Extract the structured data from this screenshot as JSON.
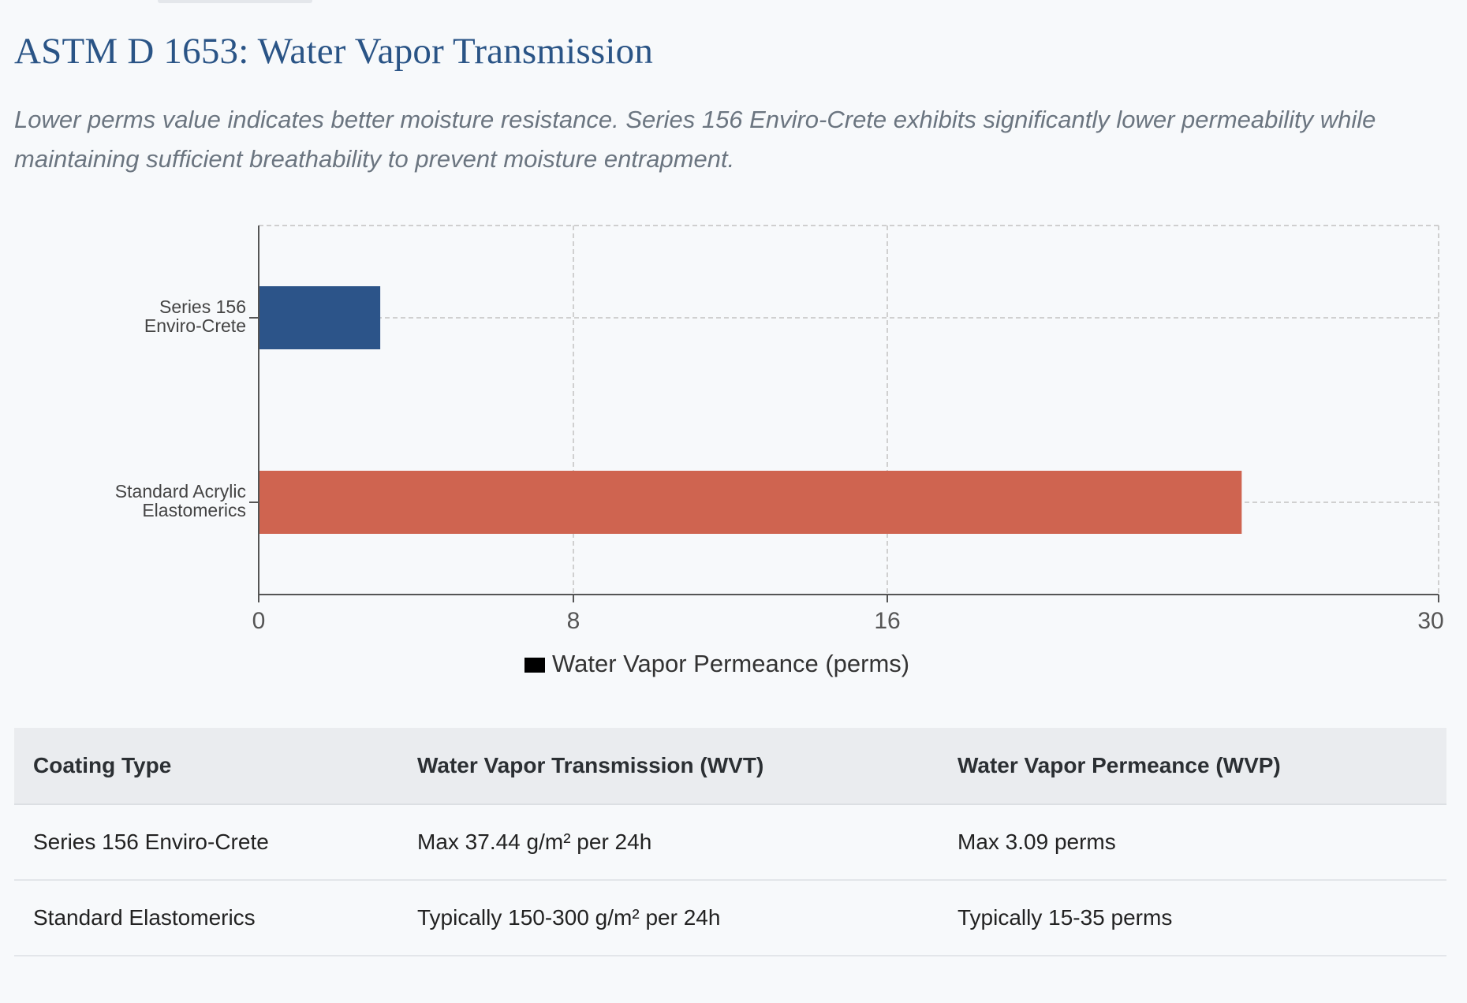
{
  "header": {
    "title": "ASTM D 1653: Water Vapor Transmission",
    "subtitle": "Lower perms value indicates better moisture resistance. Series 156 Enviro-Crete exhibits significantly lower permeability while maintaining sufficient breathability to prevent moisture entrapment."
  },
  "chart_data": {
    "type": "bar",
    "orientation": "horizontal",
    "categories": [
      [
        "Series 156",
        "Enviro-Crete"
      ],
      [
        "Standard Acrylic",
        "Elastomerics"
      ]
    ],
    "series": [
      {
        "name": "Water Vapor Permeance (perms)",
        "values": [
          3.09,
          25
        ]
      }
    ],
    "bar_colors": [
      "#2c5489",
      "#cf6450"
    ],
    "x_ticks": [
      "0",
      "8",
      "16",
      "30"
    ],
    "xlim": [
      0,
      30
    ],
    "grid": true,
    "legend": "bottom-center",
    "legend_color": "#000000"
  },
  "table": {
    "headers": [
      "Coating Type",
      "Water Vapor Transmission (WVT)",
      "Water Vapor Permeance (WVP)"
    ],
    "rows": [
      [
        "Series 156 Enviro-Crete",
        "Max 37.44 g/m² per 24h",
        "Max 3.09 perms"
      ],
      [
        "Standard Elastomerics",
        "Typically 150-300 g/m² per 24h",
        "Typically 15-35 perms"
      ]
    ]
  }
}
